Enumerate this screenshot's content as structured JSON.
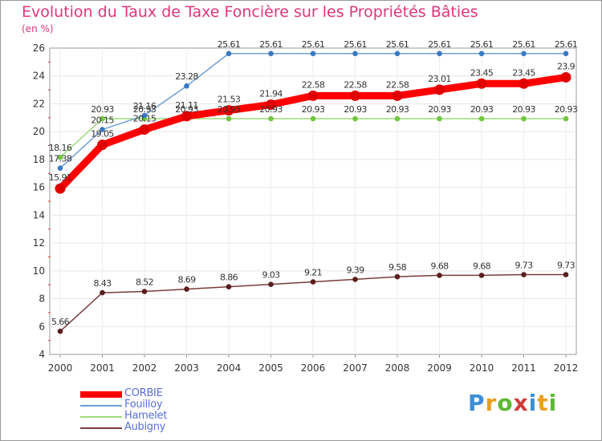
{
  "chart_data": {
    "type": "line",
    "title": "Evolution du Taux de Taxe Foncière sur les Propriétés Bâties",
    "ylabel": "(en %)",
    "xlabel": "",
    "categories": [
      "2000",
      "2001",
      "2002",
      "2003",
      "2004",
      "2005",
      "2006",
      "2007",
      "2008",
      "2009",
      "2010",
      "2011",
      "2012"
    ],
    "ylim": [
      4,
      26
    ],
    "yticks": [
      4,
      6,
      8,
      10,
      12,
      14,
      16,
      18,
      20,
      22,
      24,
      26
    ],
    "legend_position": "bottom-left",
    "series": [
      {
        "name": "CORBIE",
        "color": "#ff0000",
        "point_color": "#e00000",
        "values": [
          15.91,
          19.05,
          20.15,
          21.11,
          21.53,
          21.94,
          22.58,
          22.58,
          22.58,
          23.01,
          23.45,
          23.45,
          23.9
        ]
      },
      {
        "name": "Fouilloy",
        "color": "#6f9fd4",
        "point_color": "#3a78c4",
        "values": [
          17.38,
          20.15,
          21.16,
          23.28,
          25.61,
          25.61,
          25.61,
          25.61,
          25.61,
          25.61,
          25.61,
          25.61,
          25.61
        ]
      },
      {
        "name": "Hamelet",
        "color": "#9edb7a",
        "point_color": "#6fc73e",
        "values": [
          18.16,
          20.93,
          20.93,
          20.93,
          20.93,
          20.93,
          20.93,
          20.93,
          20.93,
          20.93,
          20.93,
          20.93,
          20.93
        ]
      },
      {
        "name": "Aubigny",
        "color": "#7a3c3c",
        "point_color": "#5a1e1e",
        "values": [
          5.66,
          8.43,
          8.52,
          8.69,
          8.86,
          9.03,
          9.21,
          9.39,
          9.58,
          9.68,
          9.68,
          9.73,
          9.73
        ]
      }
    ]
  },
  "logo": {
    "letters": [
      "P",
      "r",
      "o",
      "x",
      "i",
      "t",
      "i"
    ],
    "colors": [
      "#3a8fd6",
      "#e8a020",
      "#5cb833",
      "#d23a3a",
      "#3a8fd6",
      "#e8a020",
      "#5cb833"
    ]
  }
}
